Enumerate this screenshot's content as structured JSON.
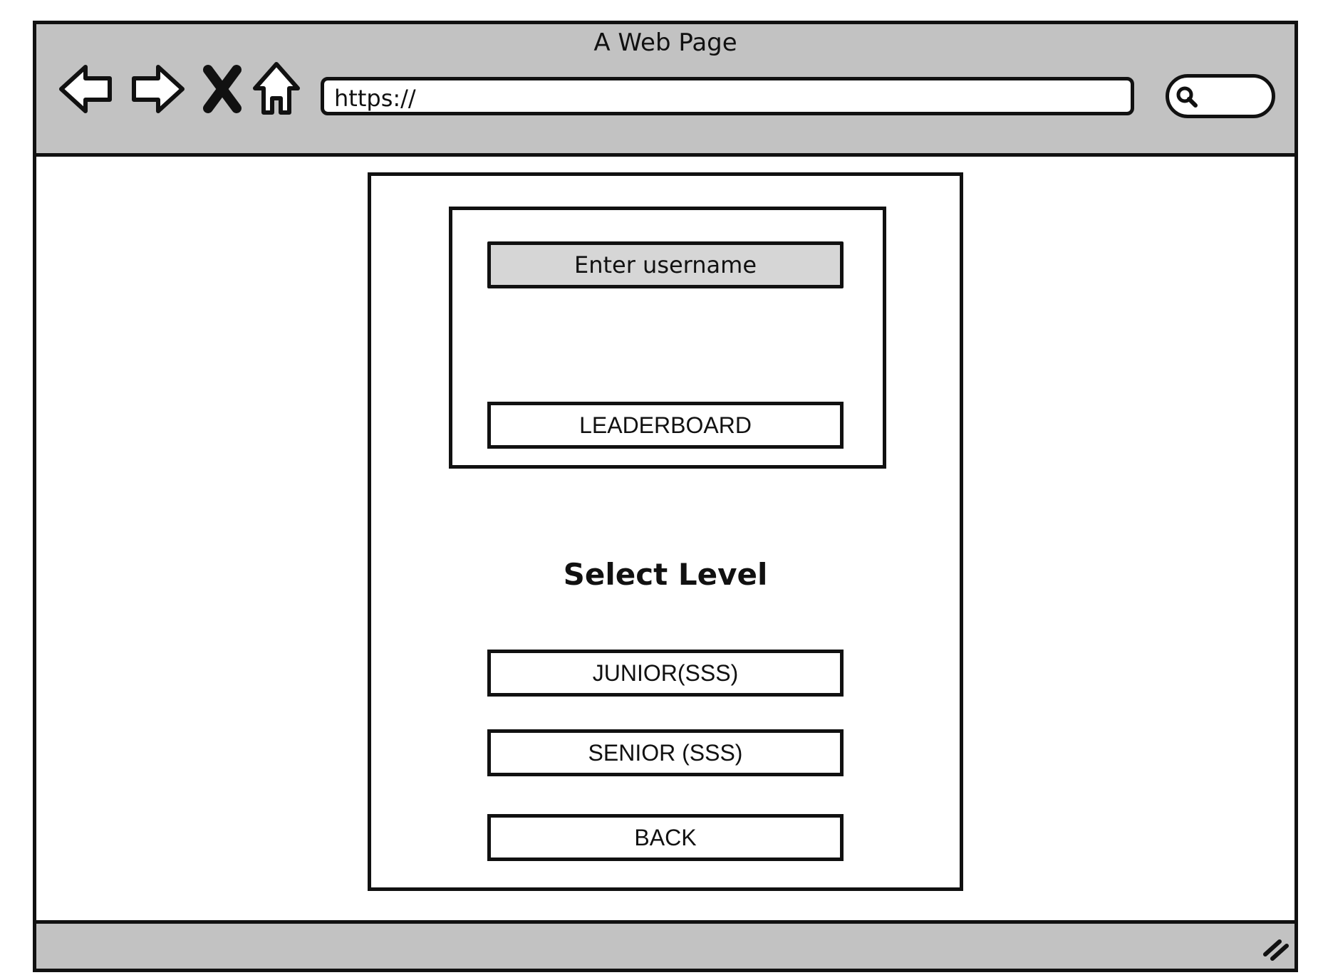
{
  "browser": {
    "title": "A Web Page",
    "url": "https://",
    "nav_icons": [
      "back-arrow-icon",
      "forward-arrow-icon",
      "close-icon",
      "home-icon"
    ],
    "search_icon": "search-icon",
    "resize_icon": "resize-grip-icon"
  },
  "form": {
    "username_placeholder": "Enter username",
    "leaderboard_label": "LEADERBOARD",
    "heading": "Select Level",
    "junior_label": "JUNIOR(SSS)",
    "senior_label": "SENIOR (SSS)",
    "back_label": "BACK"
  },
  "colors": {
    "chrome_gray": "#c2c2c2",
    "input_gray": "#d6d6d6",
    "stroke": "#111111"
  }
}
